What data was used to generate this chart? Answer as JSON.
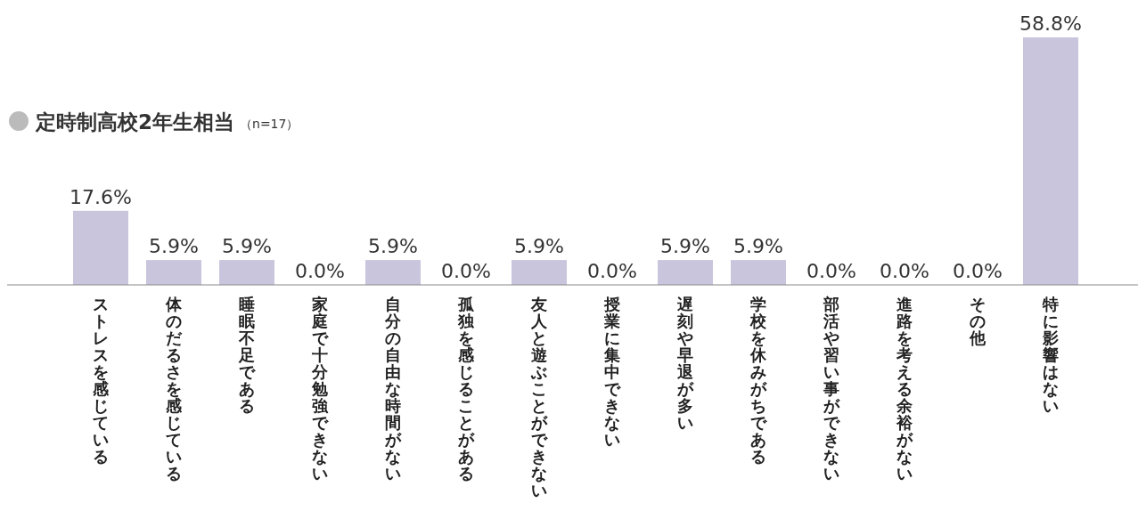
{
  "chart_data": {
    "type": "bar",
    "title": "定時制高校2年生相当",
    "subtitle": "（n=17）",
    "categories": [
      "ストレスを感じている",
      "体のだるさを感じている",
      "睡眠不足である",
      "家庭で十分勉強できない",
      "自分の自由な時間がない",
      "孤独を感じることがある",
      "友人と遊ぶことができない",
      "授業に集中できない",
      "遅刻や早退が多い",
      "学校を休みがちである",
      "部活や習い事ができない",
      "進路を考える余裕がない",
      "その他",
      "特に影響はない"
    ],
    "values": [
      17.6,
      5.9,
      5.9,
      0.0,
      5.9,
      0.0,
      5.9,
      0.0,
      5.9,
      5.9,
      0.0,
      0.0,
      0.0,
      58.8
    ],
    "value_labels": [
      "17.6%",
      "5.9%",
      "5.9%",
      "0.0%",
      "5.9%",
      "0.0%",
      "5.9%",
      "0.0%",
      "5.9%",
      "5.9%",
      "0.0%",
      "0.0%",
      "0.0%",
      "58.8%"
    ],
    "color": "#c8c5dd"
  }
}
